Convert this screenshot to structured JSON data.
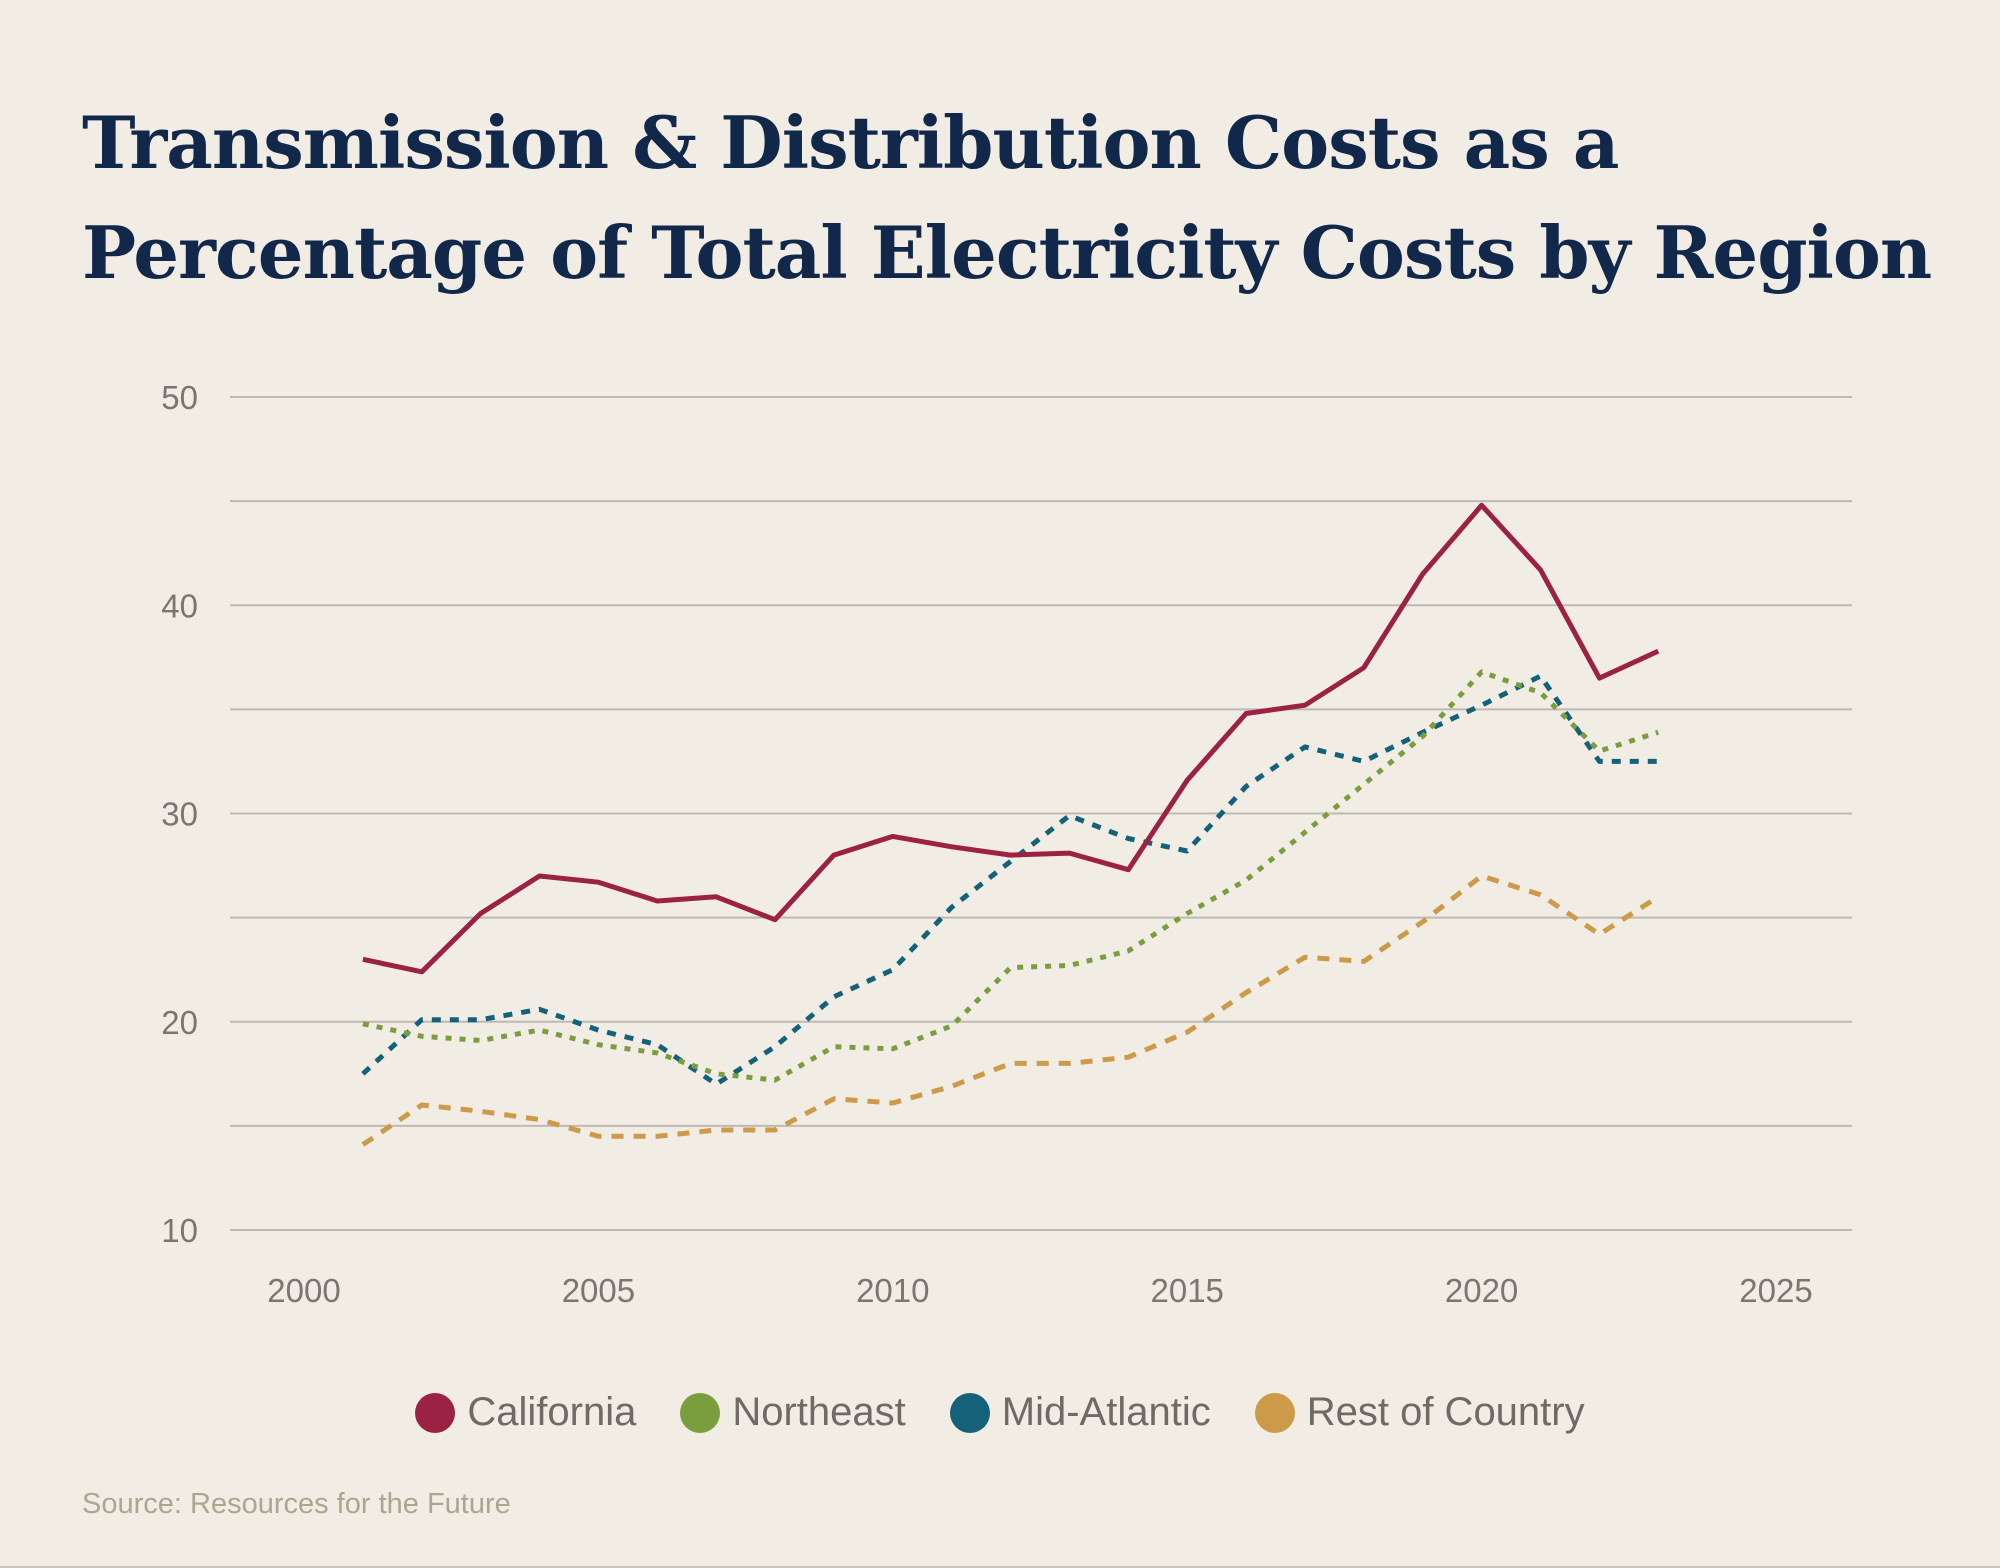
{
  "title": "Transmission & Distribution Costs as a Percentage of Total Electricity Costs by Region",
  "source": "Source: Resources for the Future",
  "chart_data": {
    "type": "line",
    "title": "Transmission & Distribution Costs as a Percentage of Total Electricity Costs by Region",
    "xlabel": "",
    "ylabel": "",
    "xlim": [
      1998.5,
      2026.5
    ],
    "ylim": [
      10,
      50
    ],
    "x_ticks": [
      2000,
      2005,
      2010,
      2015,
      2020,
      2025
    ],
    "y_ticks": [
      10,
      20,
      30,
      40,
      50
    ],
    "y_gridlines": [
      10,
      15,
      20,
      25,
      30,
      35,
      40,
      45,
      50
    ],
    "grid": "horizontal",
    "legend_placement": "bottom",
    "x": [
      2001,
      2002,
      2003,
      2004,
      2005,
      2006,
      2007,
      2008,
      2009,
      2010,
      2011,
      2012,
      2013,
      2014,
      2015,
      2016,
      2017,
      2018,
      2019,
      2020,
      2021,
      2022,
      2023
    ],
    "series": [
      {
        "name": "California",
        "color": "#9B2242",
        "style": "solid",
        "values": [
          23.0,
          22.4,
          25.2,
          27.0,
          26.7,
          25.8,
          26.0,
          24.9,
          28.0,
          28.9,
          28.4,
          28.0,
          28.1,
          27.3,
          31.6,
          34.8,
          35.2,
          37.0,
          41.5,
          44.8,
          41.7,
          36.5,
          37.8
        ]
      },
      {
        "name": "Northeast",
        "color": "#7A9E3E",
        "style": "dotted",
        "values": [
          19.9,
          19.3,
          19.1,
          19.6,
          18.9,
          18.5,
          17.5,
          17.2,
          18.8,
          18.7,
          19.8,
          22.6,
          22.7,
          23.4,
          25.2,
          26.8,
          29.1,
          31.4,
          33.7,
          36.8,
          35.8,
          33.0,
          33.9
        ]
      },
      {
        "name": "Mid-Atlantic",
        "color": "#14627A",
        "style": "short-dash",
        "values": [
          17.5,
          20.1,
          20.1,
          20.6,
          19.6,
          18.9,
          17.0,
          18.8,
          21.2,
          22.5,
          25.5,
          27.7,
          29.9,
          28.8,
          28.2,
          31.3,
          33.2,
          32.5,
          33.9,
          35.2,
          36.6,
          32.5,
          32.5
        ]
      },
      {
        "name": "Rest of Country",
        "color": "#CC9A48",
        "style": "dashed",
        "values": [
          14.1,
          16.0,
          15.7,
          15.3,
          14.5,
          14.5,
          14.8,
          14.8,
          16.3,
          16.1,
          16.9,
          18.0,
          18.0,
          18.3,
          19.5,
          21.4,
          23.1,
          22.9,
          24.8,
          27.0,
          26.1,
          24.2,
          26.0
        ]
      }
    ]
  }
}
